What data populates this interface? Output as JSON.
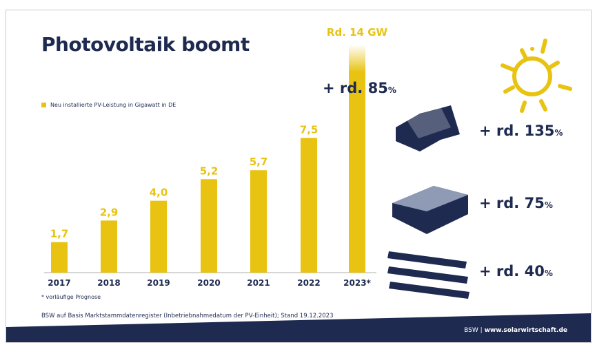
{
  "title": "Photovoltaik boomt",
  "legend": "Neu installierte PV-Leistung in Gigawatt in DE",
  "footnote": "* vorläufige Prognose",
  "source": "BSW auf Basis Marktstammdatenregister (Inbetriebnahmedatum der PV-Einheit); Stand 19.12.2023",
  "footer": {
    "brand": "BSW",
    "sep": "|",
    "url": "www.solarwirtschaft.de"
  },
  "growth": {
    "total": "+ rd. 85",
    "residential": "+ rd. 135",
    "commercial": "+ rd. 75",
    "ground": "+ rd. 40",
    "unit": "%"
  },
  "colors": {
    "bar": "#e8c312",
    "navy": "#1e2a4f"
  },
  "chart_data": {
    "type": "bar",
    "categories": [
      "2017",
      "2018",
      "2019",
      "2020",
      "2021",
      "2022",
      "2023*"
    ],
    "values": [
      1.7,
      2.9,
      4.0,
      5.2,
      5.7,
      7.5,
      14
    ],
    "labels": [
      "1,7",
      "2,9",
      "4,0",
      "5,2",
      "5,7",
      "7,5",
      "Rd. 14 GW"
    ],
    "series_name": "Neu installierte PV-Leistung in Gigawatt in DE",
    "legend": "top-left",
    "grid": false
  }
}
